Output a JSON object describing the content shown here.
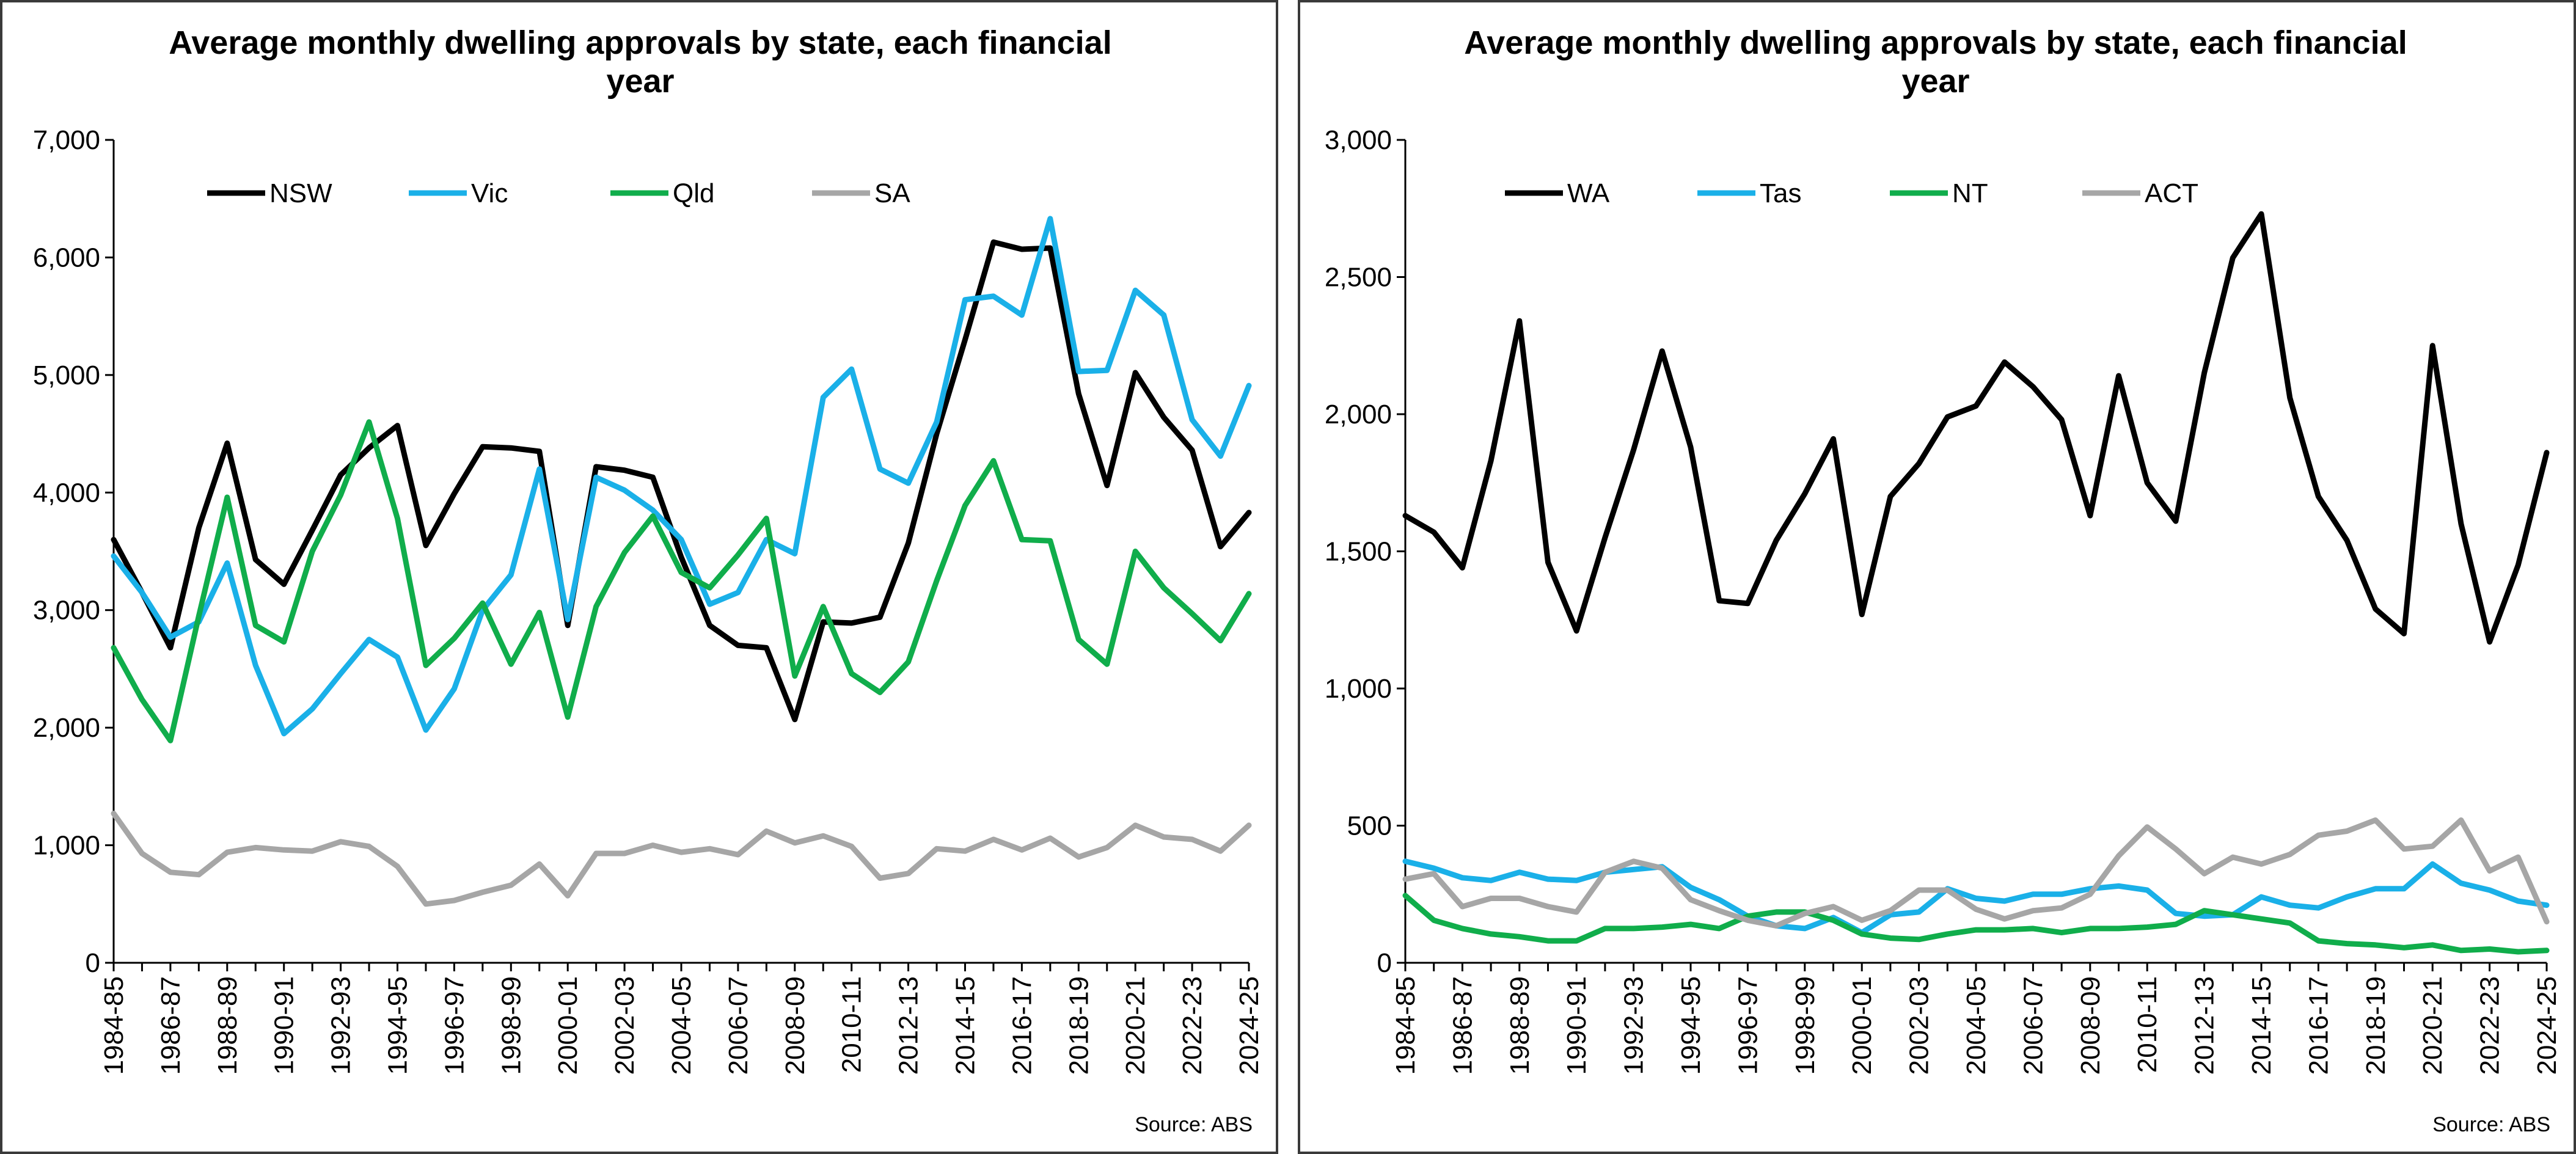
{
  "chart_data": [
    {
      "type": "line",
      "title_lines": [
        "Average monthly dwelling approvals by state, each financial",
        "year"
      ],
      "source": "Source: ABS",
      "ylim": [
        0,
        7000
      ],
      "y_ticks": [
        "0",
        "1,000",
        "2,000",
        "3,000",
        "4,000",
        "5,000",
        "6,000",
        "7,000"
      ],
      "y_tick_values": [
        0,
        1000,
        2000,
        3000,
        4000,
        5000,
        6000,
        7000
      ],
      "grid": false,
      "legend_position": "top-left",
      "x_labels": [
        "1984-85",
        "1986-87",
        "1988-89",
        "1990-91",
        "1992-93",
        "1994-95",
        "1996-97",
        "1998-99",
        "2000-01",
        "2002-03",
        "2004-05",
        "2006-07",
        "2008-09",
        "2010-11",
        "2012-13",
        "2014-15",
        "2016-17",
        "2018-19",
        "2020-21",
        "2022-23",
        "2024-25"
      ],
      "x": [
        "1984-85",
        "1985-86",
        "1986-87",
        "1987-88",
        "1988-89",
        "1989-90",
        "1990-91",
        "1991-92",
        "1992-93",
        "1993-94",
        "1994-95",
        "1995-96",
        "1996-97",
        "1997-98",
        "1998-99",
        "1999-00",
        "2000-01",
        "2001-02",
        "2002-03",
        "2003-04",
        "2004-05",
        "2005-06",
        "2006-07",
        "2007-08",
        "2008-09",
        "2009-10",
        "2010-11",
        "2011-12",
        "2012-13",
        "2013-14",
        "2014-15",
        "2015-16",
        "2016-17",
        "2017-18",
        "2018-19",
        "2019-20",
        "2020-21",
        "2021-22",
        "2022-23",
        "2023-24",
        "2024-25"
      ],
      "series": [
        {
          "name": "NSW",
          "color": "#000000",
          "values": [
            3600,
            3150,
            2680,
            3700,
            4420,
            3430,
            3220,
            3680,
            4150,
            4380,
            4570,
            3550,
            3990,
            4390,
            4380,
            4350,
            2870,
            4220,
            4190,
            4130,
            3450,
            2870,
            2700,
            2680,
            2070,
            2900,
            2890,
            2940,
            3570,
            4500,
            5300,
            6130,
            6070,
            6080,
            4840,
            4060,
            5020,
            4640,
            4360,
            3540,
            3830
          ]
        },
        {
          "name": "Vic",
          "color": "#1ab0e8",
          "values": [
            3460,
            3150,
            2770,
            2900,
            3400,
            2530,
            1950,
            2160,
            2460,
            2750,
            2600,
            1980,
            2330,
            3000,
            3300,
            4200,
            2920,
            4130,
            4020,
            3850,
            3600,
            3050,
            3150,
            3600,
            3480,
            4810,
            5050,
            4200,
            4080,
            4600,
            5640,
            5670,
            5510,
            6330,
            5030,
            5040,
            5720,
            5510,
            4620,
            4310,
            4910
          ]
        },
        {
          "name": "Qld",
          "color": "#10ad4b",
          "values": [
            2680,
            2240,
            1890,
            2950,
            3960,
            2870,
            2730,
            3500,
            3980,
            4600,
            3780,
            2530,
            2760,
            3060,
            2540,
            2980,
            2090,
            3030,
            3490,
            3800,
            3320,
            3190,
            3470,
            3780,
            2440,
            3030,
            2460,
            2300,
            2560,
            3250,
            3890,
            4270,
            3600,
            3590,
            2750,
            2540,
            3500,
            3190,
            2970,
            2740,
            3140
          ]
        },
        {
          "name": "SA",
          "color": "#a6a6a6",
          "values": [
            1270,
            930,
            770,
            750,
            940,
            980,
            960,
            950,
            1030,
            990,
            820,
            500,
            530,
            600,
            660,
            840,
            570,
            930,
            930,
            1000,
            940,
            970,
            920,
            1120,
            1020,
            1080,
            990,
            720,
            760,
            970,
            950,
            1050,
            960,
            1060,
            900,
            980,
            1170,
            1070,
            1050,
            950,
            1170
          ]
        }
      ]
    },
    {
      "type": "line",
      "title_lines": [
        "Average monthly dwelling approvals by state, each financial",
        "year"
      ],
      "source": "Source: ABS",
      "ylim": [
        0,
        3000
      ],
      "y_ticks": [
        "0",
        "500",
        "1,000",
        "1,500",
        "2,000",
        "2,500",
        "3,000"
      ],
      "y_tick_values": [
        0,
        500,
        1000,
        1500,
        2000,
        2500,
        3000
      ],
      "grid": false,
      "legend_position": "top-left",
      "x_labels": [
        "1984-85",
        "1986-87",
        "1988-89",
        "1990-91",
        "1992-93",
        "1994-95",
        "1996-97",
        "1998-99",
        "2000-01",
        "2002-03",
        "2004-05",
        "2006-07",
        "2008-09",
        "2010-11",
        "2012-13",
        "2014-15",
        "2016-17",
        "2018-19",
        "2020-21",
        "2022-23",
        "2024-25"
      ],
      "x": [
        "1984-85",
        "1985-86",
        "1986-87",
        "1987-88",
        "1988-89",
        "1989-90",
        "1990-91",
        "1991-92",
        "1992-93",
        "1993-94",
        "1994-95",
        "1995-96",
        "1996-97",
        "1997-98",
        "1998-99",
        "1999-00",
        "2000-01",
        "2001-02",
        "2002-03",
        "2003-04",
        "2004-05",
        "2005-06",
        "2006-07",
        "2007-08",
        "2008-09",
        "2009-10",
        "2010-11",
        "2011-12",
        "2012-13",
        "2013-14",
        "2014-15",
        "2015-16",
        "2016-17",
        "2017-18",
        "2018-19",
        "2019-20",
        "2020-21",
        "2021-22",
        "2022-23",
        "2023-24",
        "2024-25"
      ],
      "series": [
        {
          "name": "WA",
          "color": "#000000",
          "values": [
            1630,
            1570,
            1440,
            1830,
            2340,
            1460,
            1210,
            1550,
            1870,
            2230,
            1880,
            1320,
            1310,
            1540,
            1710,
            1910,
            1270,
            1700,
            1820,
            1990,
            2030,
            2190,
            2100,
            1980,
            1630,
            2140,
            1750,
            1610,
            2150,
            2570,
            2730,
            2060,
            1700,
            1540,
            1290,
            1200,
            2250,
            1600,
            1170,
            1450,
            1860
          ]
        },
        {
          "name": "Tas",
          "color": "#1ab0e8",
          "values": [
            370,
            345,
            310,
            300,
            330,
            305,
            300,
            330,
            340,
            350,
            275,
            230,
            170,
            135,
            125,
            165,
            110,
            175,
            185,
            270,
            235,
            225,
            250,
            250,
            270,
            280,
            265,
            180,
            170,
            175,
            240,
            210,
            200,
            240,
            270,
            270,
            360,
            290,
            265,
            225,
            210
          ]
        },
        {
          "name": "NT",
          "color": "#10ad4b",
          "values": [
            245,
            155,
            125,
            105,
            95,
            80,
            80,
            125,
            125,
            130,
            140,
            125,
            170,
            185,
            185,
            155,
            105,
            90,
            85,
            105,
            120,
            120,
            125,
            110,
            125,
            125,
            130,
            140,
            190,
            175,
            160,
            145,
            80,
            70,
            65,
            55,
            65,
            45,
            50,
            40,
            45
          ]
        },
        {
          "name": "ACT",
          "color": "#a6a6a6",
          "values": [
            305,
            325,
            205,
            235,
            235,
            205,
            185,
            330,
            370,
            345,
            230,
            190,
            155,
            135,
            180,
            205,
            155,
            190,
            265,
            265,
            195,
            160,
            190,
            200,
            250,
            390,
            495,
            415,
            325,
            385,
            360,
            395,
            465,
            480,
            520,
            415,
            425,
            520,
            335,
            385,
            150
          ]
        }
      ]
    }
  ]
}
